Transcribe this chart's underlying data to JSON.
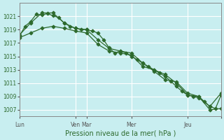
{
  "title": "Pression niveau de la mer( hPa )",
  "bg_color": "#c8eef0",
  "grid_color": "#ffffff",
  "line_color": "#2d6a2d",
  "ylim": [
    1006,
    1023
  ],
  "yticks": [
    1007,
    1009,
    1011,
    1013,
    1015,
    1017,
    1019,
    1021
  ],
  "xmin": 0,
  "xmax": 216,
  "vline_positions": [
    0,
    60,
    72,
    120,
    180,
    216
  ],
  "tick_positions": [
    0,
    60,
    72,
    120,
    180,
    216
  ],
  "tick_labels": [
    "Lun",
    "Ven",
    "Mar",
    "Mer",
    "Jeu",
    ""
  ],
  "line1_x": [
    0,
    6,
    12,
    18,
    24,
    30,
    36,
    42,
    48,
    54,
    60,
    66,
    72,
    78,
    84,
    90,
    96,
    102,
    108,
    114,
    120,
    126,
    132,
    138,
    144,
    150,
    156,
    162,
    168,
    174,
    180,
    186,
    192,
    198,
    204,
    210,
    216
  ],
  "line1_y": [
    1018.0,
    1019.5,
    1020.2,
    1021.3,
    1021.2,
    1021.4,
    1021.1,
    1020.8,
    1020.0,
    1019.5,
    1019.2,
    1019.0,
    1019.0,
    1018.8,
    1018.5,
    1017.5,
    1016.3,
    1015.5,
    1015.8,
    1015.5,
    1015.0,
    1014.5,
    1014.0,
    1013.5,
    1013.0,
    1012.5,
    1012.0,
    1011.3,
    1010.5,
    1009.8,
    1009.2,
    1009.0,
    1008.8,
    1008.2,
    1007.5,
    1007.2,
    1009.2
  ],
  "line2_x": [
    0,
    12,
    24,
    36,
    48,
    60,
    72,
    84,
    96,
    108,
    120,
    132,
    144,
    156,
    168,
    180,
    192,
    204,
    216
  ],
  "line2_y": [
    1018.2,
    1020.0,
    1021.5,
    1021.5,
    1020.0,
    1019.2,
    1019.0,
    1017.5,
    1016.2,
    1015.8,
    1015.5,
    1014.0,
    1012.8,
    1011.5,
    1011.2,
    1009.5,
    1009.0,
    1007.5,
    1009.5
  ],
  "line3_x": [
    0,
    12,
    24,
    36,
    48,
    60,
    72,
    84,
    96,
    108,
    120,
    132,
    144,
    156,
    168,
    180,
    192,
    204,
    216
  ],
  "line3_y": [
    1017.8,
    1018.5,
    1019.2,
    1019.5,
    1019.2,
    1018.8,
    1018.5,
    1016.8,
    1015.8,
    1015.5,
    1015.2,
    1013.5,
    1013.0,
    1012.3,
    1011.0,
    1009.2,
    1009.0,
    1007.0,
    1007.2
  ]
}
